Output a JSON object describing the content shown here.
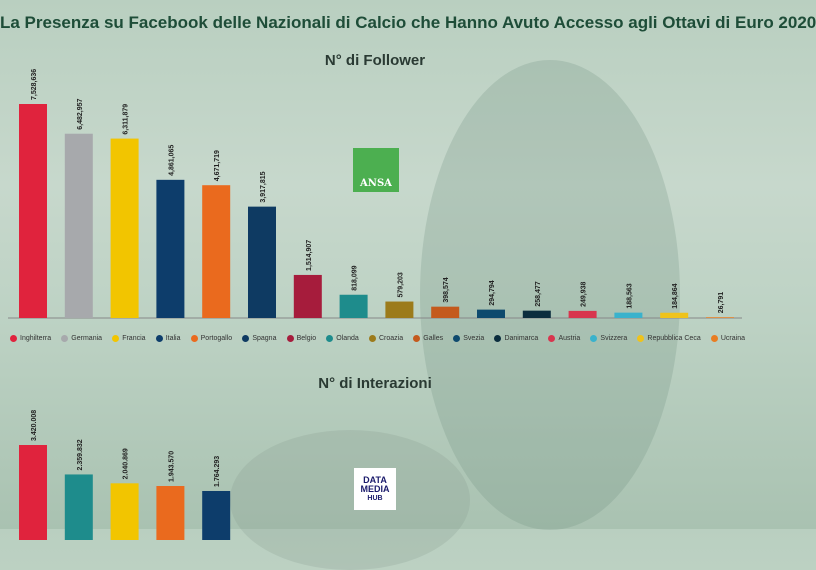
{
  "title": "La Presenza su Facebook delle Nazionali di Calcio che Hanno Avuto Accesso agli Ottavi di Euro 2020",
  "logo_ansa": "ANSA",
  "logo_dmh": {
    "line1": "DATA",
    "line2": "MEDIA",
    "line3": "HUB"
  },
  "legend": [
    {
      "name": "Inghilterra",
      "color": "#e0233d"
    },
    {
      "name": "Germania",
      "color": "#a7a9ac"
    },
    {
      "name": "Francia",
      "color": "#f2c500"
    },
    {
      "name": "Italia",
      "color": "#0d3d6b"
    },
    {
      "name": "Portogallo",
      "color": "#ea6a1e"
    },
    {
      "name": "Spagna",
      "color": "#0e3a62"
    },
    {
      "name": "Belgio",
      "color": "#a61c3c"
    },
    {
      "name": "Olanda",
      "color": "#1e8c8c"
    },
    {
      "name": "Croazia",
      "color": "#9c7b1b"
    },
    {
      "name": "Galles",
      "color": "#c45a1d"
    },
    {
      "name": "Svezia",
      "color": "#0e4a6e"
    },
    {
      "name": "Danimarca",
      "color": "#0b2d3e"
    },
    {
      "name": "Austria",
      "color": "#d8354e"
    },
    {
      "name": "Svizzera",
      "color": "#3ab2cc"
    },
    {
      "name": "Repubblica Ceca",
      "color": "#efc31c"
    },
    {
      "name": "Ucraina",
      "color": "#e87d22"
    }
  ],
  "chart_data": [
    {
      "type": "bar",
      "title": "N° di Follower",
      "categories": [
        "Inghilterra",
        "Germania",
        "Francia",
        "Italia",
        "Portogallo",
        "Spagna",
        "Belgio",
        "Olanda",
        "Croazia",
        "Galles",
        "Svezia",
        "Danimarca",
        "Austria",
        "Svizzera",
        "Repubblica Ceca",
        "Ucraina"
      ],
      "values": [
        7528636,
        6482957,
        6311879,
        4861065,
        4671719,
        3917815,
        1514907,
        818099,
        579203,
        398574,
        294794,
        258477,
        249938,
        188563,
        184864,
        26791
      ],
      "labels": [
        "7,528,636",
        "6,482,957",
        "6,311,879",
        "4,861,065",
        "4,671,719",
        "3,917,815",
        "1,514,907",
        "818,099",
        "579,203",
        "398,574",
        "294,794",
        "258,477",
        "249,938",
        "188,563",
        "184,864",
        "26,791"
      ],
      "colors": [
        "#e0233d",
        "#a7a9ac",
        "#f2c500",
        "#0d3d6b",
        "#ea6a1e",
        "#0e3a62",
        "#a61c3c",
        "#1e8c8c",
        "#9c7b1b",
        "#c45a1d",
        "#0e4a6e",
        "#0b2d3e",
        "#d8354e",
        "#3ab2cc",
        "#efc31c",
        "#e87d22"
      ],
      "ylim": [
        0,
        7528636
      ]
    },
    {
      "type": "bar",
      "title": "N° di Interazioni",
      "categories": [
        "Inghilterra",
        "Olanda",
        "Francia",
        "Portogallo",
        "Italia"
      ],
      "values": [
        3420008,
        2359832,
        2040869,
        1943570,
        1764293
      ],
      "labels": [
        "3.420.008",
        "2.359.832",
        "2.040.869",
        "1.943.570",
        "1.764.293"
      ],
      "colors": [
        "#e0233d",
        "#1e8c8c",
        "#f2c500",
        "#ea6a1e",
        "#0d3d6b"
      ],
      "ylim": [
        0,
        3420008
      ]
    }
  ]
}
